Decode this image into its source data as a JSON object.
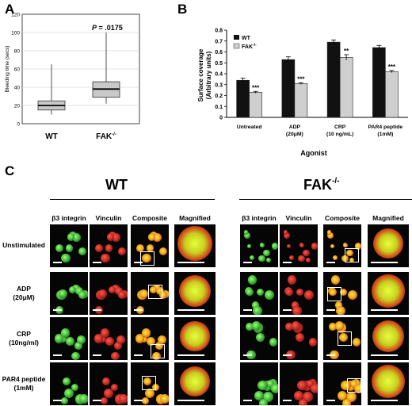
{
  "panel_a": {
    "letter": "A",
    "ylabel": "Bleeding time (secs)",
    "yticks": [
      "0",
      "20",
      "40",
      "60",
      "80",
      "100",
      "120"
    ],
    "p_value": "P = .0175",
    "chart_data": {
      "type": "box",
      "categories": [
        "WT",
        "FAK-/-"
      ],
      "ylim": [
        0,
        120
      ],
      "series": [
        {
          "label": "WT",
          "min": 10,
          "q1": 15,
          "median": 20,
          "q3": 25,
          "max": 65
        },
        {
          "label": "FAK-/-",
          "min": 22,
          "q1": 29,
          "median": 38,
          "q3": 46,
          "max": 100
        }
      ]
    }
  },
  "panel_b": {
    "letter": "B",
    "ylabel": "Surface coverage (Arbitrary units)",
    "xlabel": "Agonist",
    "yticks": [
      "0",
      "0.1",
      "0.2",
      "0.3",
      "0.4",
      "0.5",
      "0.6",
      "0.7",
      "0.8"
    ],
    "legend": [
      "WT",
      "FAK-/-"
    ],
    "colors": {
      "wt": "#111111",
      "fak": "#cfcfcf"
    },
    "categories": [
      {
        "line1": "Untreated",
        "line2": ""
      },
      {
        "line1": "ADP",
        "line2": "(20μM)"
      },
      {
        "line1": "CRP",
        "line2": "(10 ng/mL)"
      },
      {
        "line1": "PAR4 peptide",
        "line2": "(1mM)"
      }
    ],
    "chart_data": {
      "type": "bar",
      "categories": [
        "Untreated",
        "ADP (20μM)",
        "CRP (10 ng/mL)",
        "PAR4 peptide (1mM)"
      ],
      "ylim": [
        0,
        0.8
      ],
      "series": [
        {
          "name": "WT",
          "values": [
            0.34,
            0.53,
            0.69,
            0.64
          ],
          "errors": [
            0.02,
            0.025,
            0.02,
            0.02
          ]
        },
        {
          "name": "FAK-/-",
          "values": [
            0.23,
            0.31,
            0.55,
            0.42
          ],
          "errors": [
            0.008,
            0.008,
            0.025,
            0.01
          ]
        }
      ],
      "significance": [
        "***",
        "***",
        "**",
        "***"
      ]
    }
  },
  "panel_c": {
    "letter": "C",
    "groups": [
      {
        "title": "WT",
        "title_sup": ""
      },
      {
        "title": "FAK",
        "title_sup": "-/-"
      }
    ],
    "columns": [
      "β3 integrin",
      "Vinculin",
      "Composite",
      "Magnified"
    ],
    "rows": [
      {
        "line1": "Unstimulated",
        "line2": ""
      },
      {
        "line1": "ADP",
        "line2": "(20μM)"
      },
      {
        "line1": "CRP",
        "line2": "(10ng/ml)"
      },
      {
        "line1": "PAR4 peptide",
        "line2": "(1mM)"
      }
    ]
  }
}
